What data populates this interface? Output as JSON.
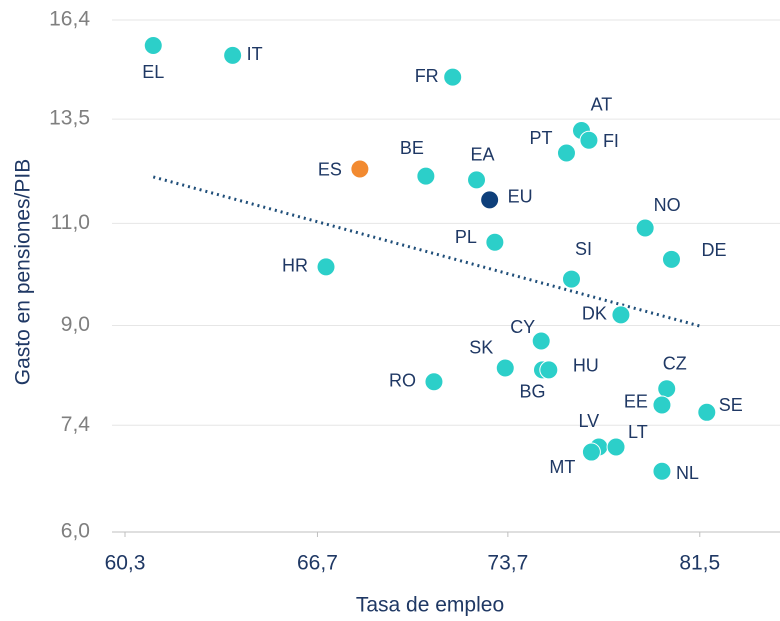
{
  "chart_data": {
    "type": "scatter",
    "x_label": "Tasa de empleo",
    "y_label": "Gasto en pensiones/PIB",
    "labels": [
      "EL",
      "IT",
      "FR",
      "AT",
      "FI",
      "PT",
      "ES",
      "BE",
      "EA",
      "EU",
      "NO",
      "PL",
      "DE",
      "HR",
      "SI",
      "DK",
      "CY",
      "SK",
      "BG",
      "HU",
      "RO",
      "CZ",
      "EE",
      "SE",
      "LV",
      "LT",
      "MT",
      "NL"
    ],
    "x": [
      61.2,
      63.8,
      71.6,
      76.6,
      76.9,
      76.0,
      68.2,
      70.6,
      72.5,
      73.0,
      79.2,
      73.2,
      80.3,
      67.0,
      76.2,
      78.2,
      75.0,
      73.6,
      75.05,
      75.3,
      70.9,
      80.1,
      79.9,
      81.8,
      77.3,
      78.0,
      77.0,
      79.9
    ],
    "y": [
      15.6,
      15.3,
      14.66,
      13.2,
      12.95,
      12.63,
      12.24,
      12.07,
      11.98,
      11.52,
      10.9,
      10.6,
      10.25,
      10.1,
      9.86,
      9.19,
      8.73,
      8.28,
      8.25,
      8.25,
      8.06,
      7.95,
      7.7,
      7.59,
      7.09,
      7.09,
      7.02,
      6.76
    ],
    "colors": [
      "#2ccfc9",
      "#2ccfc9",
      "#2ccfc9",
      "#2ccfc9",
      "#2ccfc9",
      "#2ccfc9",
      "#f28a30",
      "#2ccfc9",
      "#2ccfc9",
      "#0e3f7a",
      "#2ccfc9",
      "#2ccfc9",
      "#2ccfc9",
      "#2ccfc9",
      "#2ccfc9",
      "#2ccfc9",
      "#2ccfc9",
      "#2ccfc9",
      "#2ccfc9",
      "#2ccfc9",
      "#2ccfc9",
      "#2ccfc9",
      "#2ccfc9",
      "#2ccfc9",
      "#2ccfc9",
      "#2ccfc9",
      "#2ccfc9",
      "#2ccfc9"
    ],
    "trendline": {
      "x": [
        61.2,
        81.6
      ],
      "y": [
        12.05,
        8.98
      ],
      "color": "#1f4e79"
    },
    "xlim": [
      60.3,
      85.0
    ],
    "ylim": [
      6.0,
      16.4
    ],
    "xscale": "log",
    "yscale": "log",
    "xticks": [
      {
        "value": 60.3,
        "label": "60,3"
      },
      {
        "value": 66.7,
        "label": "66,7"
      },
      {
        "value": 73.7,
        "label": "73,7"
      },
      {
        "value": 81.5,
        "label": "81,5"
      }
    ],
    "yticks": [
      {
        "value": 6.0,
        "label": "6,0"
      },
      {
        "value": 7.4,
        "label": "7,4"
      },
      {
        "value": 9.0,
        "label": "9,0"
      },
      {
        "value": 11.0,
        "label": "11,0"
      },
      {
        "value": 13.5,
        "label": "13,5"
      },
      {
        "value": 16.4,
        "label": "16,4"
      }
    ],
    "grid": true
  }
}
